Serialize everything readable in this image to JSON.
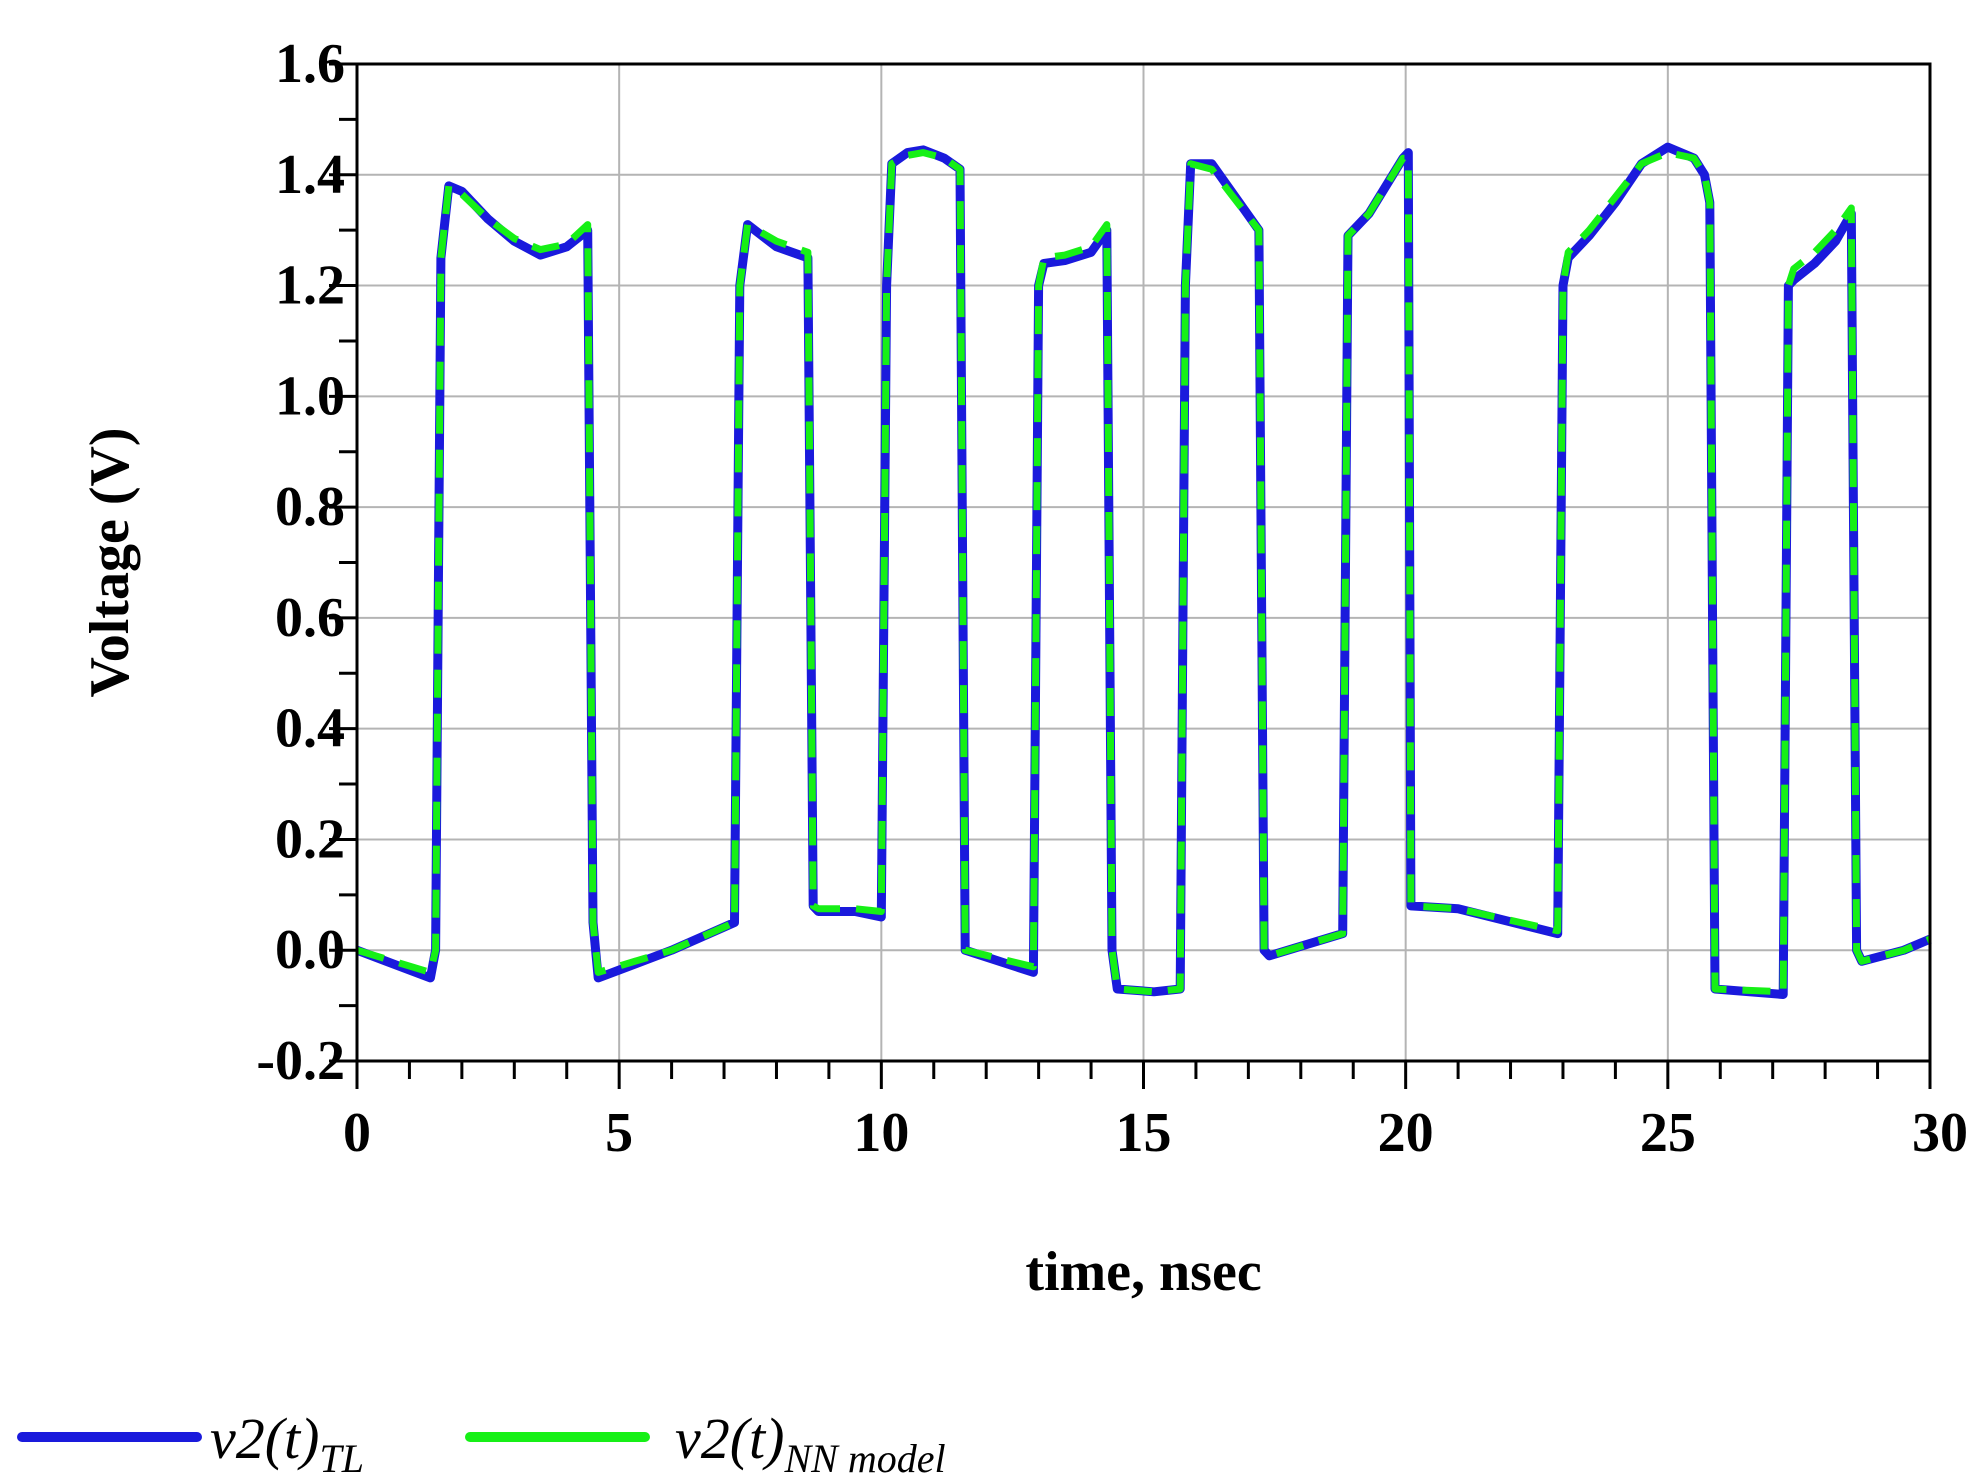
{
  "chart_data": {
    "type": "line",
    "xlabel": "time, nsec",
    "ylabel": "Voltage (V)",
    "xlim": [
      0,
      30
    ],
    "ylim": [
      -0.2,
      1.6
    ],
    "xticks": [
      0,
      5,
      10,
      15,
      20,
      25,
      30
    ],
    "yticks": [
      -0.2,
      0.0,
      0.2,
      0.4,
      0.6,
      0.8,
      1.0,
      1.2,
      1.4,
      1.6
    ],
    "ytick_labels": [
      "-0.2",
      "0.0",
      "0.2",
      "0.4",
      "0.6",
      "0.8",
      "1.0",
      "1.2",
      "1.4",
      "1.6"
    ],
    "xtick_labels": [
      "0",
      "5",
      "10",
      "15",
      "20",
      "25",
      "30"
    ],
    "grid": true,
    "legend_position": "bottom",
    "series": [
      {
        "name": "v2(t)TL",
        "legend_main": "v2(t)",
        "legend_sub": "TL",
        "color": "#1a1adc",
        "style": "solid",
        "x": [
          0,
          1.4,
          1.5,
          1.6,
          1.75,
          2.0,
          2.5,
          3.0,
          3.5,
          4.0,
          4.4,
          4.5,
          4.6,
          6.0,
          7.2,
          7.3,
          7.45,
          8.0,
          8.6,
          8.7,
          8.8,
          9.5,
          10.0,
          10.1,
          10.2,
          10.5,
          10.8,
          11.2,
          11.5,
          11.6,
          12.9,
          13.0,
          13.1,
          13.5,
          14.0,
          14.3,
          14.4,
          14.5,
          15.2,
          15.7,
          15.8,
          15.9,
          16.3,
          17.2,
          17.3,
          17.4,
          18.8,
          18.9,
          19.3,
          19.95,
          20.05,
          20.1,
          21.0,
          22.9,
          23.0,
          23.1,
          23.5,
          24.0,
          24.5,
          25.0,
          25.5,
          25.7,
          25.8,
          25.9,
          27.2,
          27.3,
          27.4,
          27.8,
          28.2,
          28.5,
          28.6,
          28.7,
          29.5,
          30.0
        ],
        "y": [
          0.0,
          -0.05,
          0.0,
          1.25,
          1.38,
          1.37,
          1.32,
          1.28,
          1.255,
          1.27,
          1.3,
          0.05,
          -0.05,
          0.0,
          0.05,
          1.2,
          1.31,
          1.27,
          1.25,
          0.08,
          0.07,
          0.07,
          0.06,
          1.2,
          1.42,
          1.44,
          1.445,
          1.43,
          1.41,
          0.0,
          -0.04,
          1.2,
          1.24,
          1.245,
          1.26,
          1.3,
          0.0,
          -0.07,
          -0.075,
          -0.07,
          1.2,
          1.42,
          1.42,
          1.3,
          0.0,
          -0.01,
          0.03,
          1.29,
          1.33,
          1.43,
          1.44,
          0.08,
          0.075,
          0.03,
          1.2,
          1.25,
          1.29,
          1.35,
          1.42,
          1.45,
          1.43,
          1.4,
          1.35,
          -0.07,
          -0.08,
          1.2,
          1.21,
          1.24,
          1.28,
          1.33,
          0.0,
          -0.02,
          0.0,
          0.02
        ]
      },
      {
        "name": "v2(t)NN model",
        "legend_main": "v2(t)",
        "legend_sub": "NN model",
        "color": "#16f016",
        "style": "dashed",
        "x": [
          0,
          1.4,
          1.5,
          1.6,
          1.75,
          2.0,
          2.5,
          3.0,
          3.5,
          4.0,
          4.4,
          4.5,
          4.6,
          6.0,
          7.2,
          7.3,
          7.45,
          8.0,
          8.6,
          8.7,
          8.8,
          9.5,
          10.0,
          10.1,
          10.2,
          10.5,
          10.8,
          11.2,
          11.5,
          11.6,
          12.9,
          13.0,
          13.1,
          13.5,
          14.0,
          14.3,
          14.4,
          14.5,
          15.2,
          15.7,
          15.8,
          15.9,
          16.3,
          17.2,
          17.3,
          17.4,
          18.8,
          18.9,
          19.3,
          19.95,
          20.05,
          20.1,
          21.0,
          22.9,
          23.0,
          23.1,
          23.5,
          24.0,
          24.5,
          25.0,
          25.5,
          25.7,
          25.8,
          25.9,
          27.2,
          27.3,
          27.4,
          27.8,
          28.2,
          28.5,
          28.6,
          28.7,
          29.5,
          30.0
        ],
        "y": [
          0.0,
          -0.04,
          0.0,
          1.25,
          1.38,
          1.365,
          1.32,
          1.285,
          1.265,
          1.275,
          1.31,
          0.05,
          -0.04,
          0.0,
          0.05,
          1.2,
          1.31,
          1.28,
          1.26,
          0.08,
          0.075,
          0.075,
          0.07,
          1.2,
          1.42,
          1.435,
          1.44,
          1.43,
          1.41,
          0.0,
          -0.03,
          1.2,
          1.25,
          1.255,
          1.27,
          1.31,
          0.0,
          -0.07,
          -0.075,
          -0.07,
          1.2,
          1.42,
          1.41,
          1.3,
          0.0,
          -0.01,
          0.03,
          1.29,
          1.33,
          1.43,
          1.43,
          0.08,
          0.075,
          0.035,
          1.2,
          1.26,
          1.3,
          1.36,
          1.42,
          1.44,
          1.43,
          1.4,
          1.35,
          -0.07,
          -0.075,
          1.2,
          1.23,
          1.26,
          1.3,
          1.34,
          0.0,
          -0.02,
          0.0,
          0.02
        ]
      }
    ]
  }
}
